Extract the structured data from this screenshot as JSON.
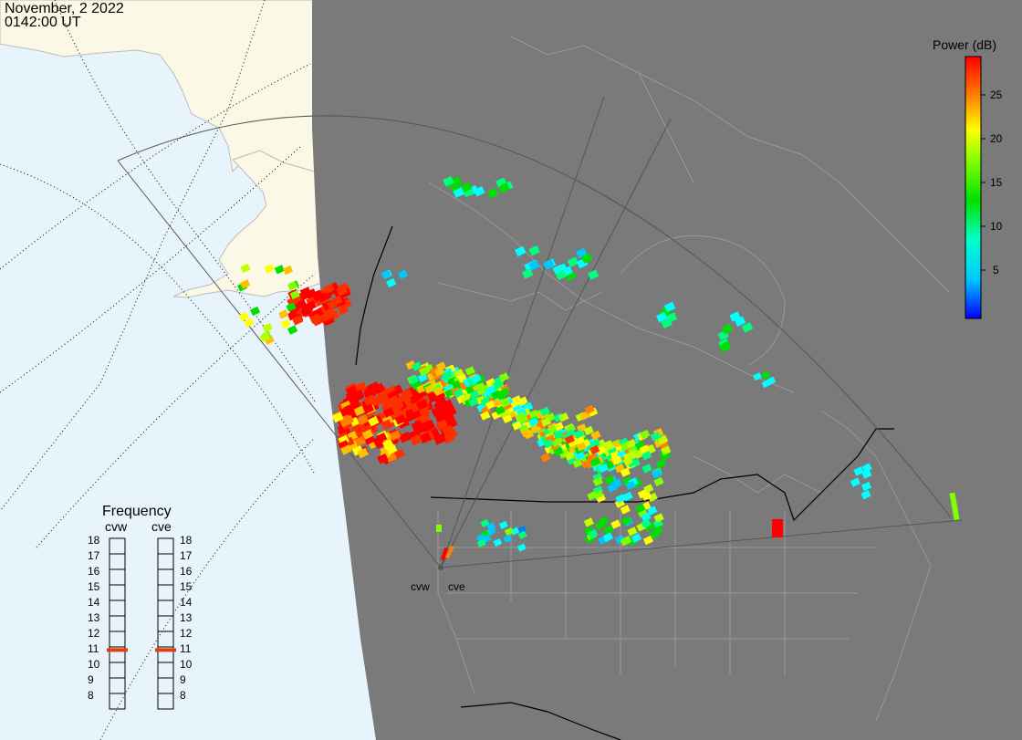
{
  "header": {
    "date": "November, 2 2022",
    "time": "0142:00 UT"
  },
  "colorbar": {
    "title": "Power (dB)",
    "range": [
      0,
      30
    ],
    "ticks": [
      "25",
      "20",
      "15",
      "10",
      "5"
    ],
    "gradient": [
      "#0000ff",
      "#00c8ff",
      "#00ffcc",
      "#00e000",
      "#80ff00",
      "#ffff00",
      "#ff8000",
      "#ff0000"
    ]
  },
  "frequency_panel": {
    "title": "Frequency",
    "radars": [
      {
        "code": "cvw",
        "frequency_mhz": 10.8,
        "bar_color": "#e04010"
      },
      {
        "code": "cve",
        "frequency_mhz": 10.8,
        "bar_color": "#e04010"
      }
    ],
    "scale": [
      "18",
      "17",
      "16",
      "15",
      "14",
      "13",
      "12",
      "11",
      "10",
      "9",
      "8"
    ]
  },
  "site_labels": [
    "cvw",
    "cve"
  ],
  "colors": {
    "night_shading": "#7a7a7a",
    "ocean_day": "#e8f4fc",
    "land_day": "#fbf8e6",
    "fov_outline": "#555555",
    "boundaries": "#000000"
  }
}
